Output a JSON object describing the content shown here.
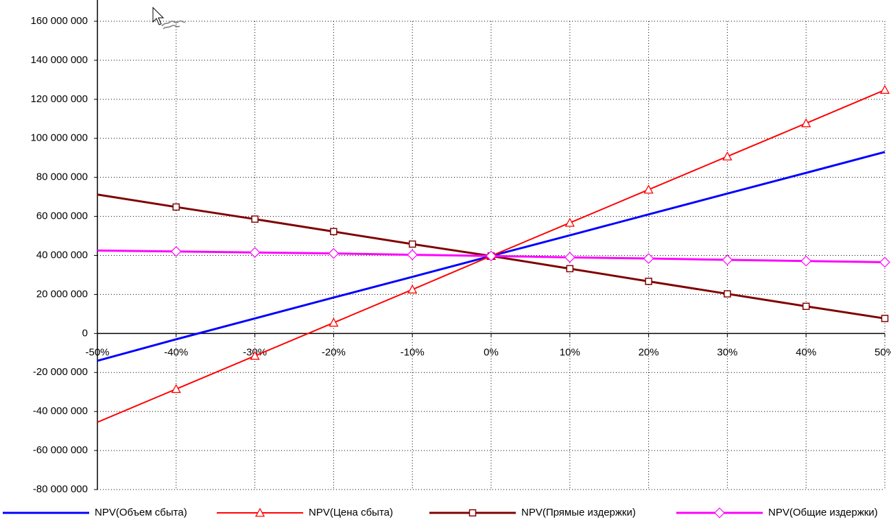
{
  "chart_data": {
    "type": "line",
    "title": "",
    "xlabel": "",
    "ylabel": "",
    "x": [
      -50,
      -40,
      -30,
      -20,
      -10,
      0,
      10,
      20,
      30,
      40,
      50
    ],
    "x_tick_labels": [
      "-50%",
      "-40%",
      "-30%",
      "-20%",
      "-10%",
      "0%",
      "10%",
      "20%",
      "30%",
      "40%",
      "50%"
    ],
    "ylim": [
      -80000000,
      160000000
    ],
    "y_ticks": [
      160000000,
      140000000,
      120000000,
      100000000,
      80000000,
      60000000,
      40000000,
      20000000,
      0,
      -20000000,
      -40000000,
      -60000000,
      -80000000
    ],
    "y_tick_labels": [
      "160 000 000",
      "140 000 000",
      "120 000 000",
      "100 000 000",
      "80 000 000",
      "60 000 000",
      "40 000 000",
      "20 000 000",
      "0",
      "-20 000 000",
      "-40 000 000",
      "-60 000 000",
      "-80 000 000"
    ],
    "grid": true,
    "legend_position": "bottom",
    "series": [
      {
        "name": "NPV(Объем сбыта)",
        "color": "#0000ff",
        "marker": "none",
        "values": [
          -14000000,
          -3000000,
          7700000,
          18400000,
          29000000,
          39700000,
          50300000,
          61000000,
          71700000,
          82300000,
          93000000
        ]
      },
      {
        "name": "NPV(Цена сбыта)",
        "color": "#ff0000",
        "marker": "triangle",
        "values": [
          -45500000,
          -28500000,
          -11500000,
          5500000,
          22500000,
          39700000,
          56700000,
          73700000,
          90700000,
          107700000,
          124800000
        ]
      },
      {
        "name": "NPV(Прямые издержки)",
        "color": "#800000",
        "marker": "square",
        "values": [
          71200000,
          64800000,
          58600000,
          52200000,
          45800000,
          39700000,
          33200000,
          26700000,
          20300000,
          13900000,
          7700000
        ]
      },
      {
        "name": "NPV(Общие издержки)",
        "color": "#ff00ff",
        "marker": "diamond",
        "values": [
          42500000,
          42000000,
          41500000,
          41000000,
          40300000,
          39700000,
          39000000,
          38400000,
          37700000,
          37100000,
          36500000
        ]
      }
    ]
  }
}
